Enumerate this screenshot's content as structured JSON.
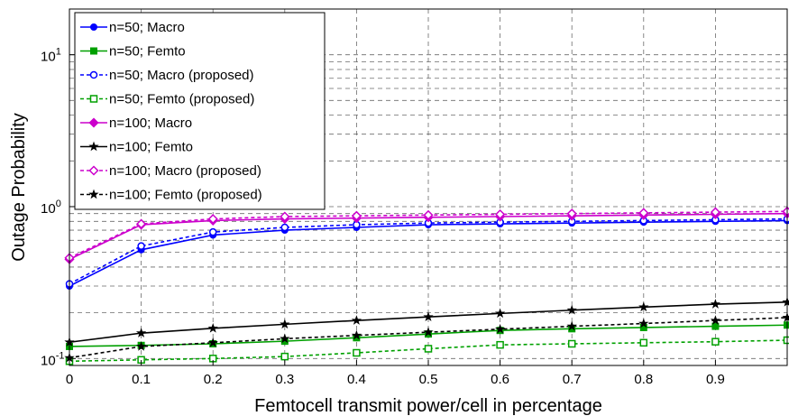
{
  "chart_data": {
    "type": "line",
    "title": "",
    "xlabel": "Femtocell transmit power/cell in percentage",
    "ylabel": "Outage Probability",
    "y_scale": "log",
    "xlim": [
      0,
      1
    ],
    "ylim": [
      0.09,
      20
    ],
    "grid": true,
    "legend_position": "top-left",
    "x_ticks": [
      {
        "value": 0,
        "label": "0"
      },
      {
        "value": 0.1,
        "label": "0.1"
      },
      {
        "value": 0.2,
        "label": "0.2"
      },
      {
        "value": 0.3,
        "label": "0.3"
      },
      {
        "value": 0.4,
        "label": "0.4"
      },
      {
        "value": 0.5,
        "label": "0.5"
      },
      {
        "value": 0.6,
        "label": "0.6"
      },
      {
        "value": 0.7,
        "label": "0.7"
      },
      {
        "value": 0.8,
        "label": "0.8"
      },
      {
        "value": 0.9,
        "label": "0.9"
      }
    ],
    "y_ticks": [
      {
        "value": 0.1,
        "base": "10",
        "exp": "-1"
      },
      {
        "value": 1,
        "base": "10",
        "exp": "0"
      },
      {
        "value": 10,
        "base": "10",
        "exp": "1"
      }
    ],
    "x": [
      0,
      0.1,
      0.2,
      0.3,
      0.4,
      0.5,
      0.6,
      0.7,
      0.8,
      0.9,
      1.0
    ],
    "series": [
      {
        "name": "n=50; Macro",
        "color": "#0000ff",
        "marker": "circle-filled",
        "dashed": false,
        "values": [
          0.3,
          0.52,
          0.65,
          0.7,
          0.73,
          0.76,
          0.77,
          0.78,
          0.79,
          0.8,
          0.81
        ]
      },
      {
        "name": "n=50; Femto",
        "color": "#00a000",
        "marker": "square-filled",
        "dashed": false,
        "values": [
          0.12,
          0.122,
          0.125,
          0.13,
          0.137,
          0.145,
          0.153,
          0.157,
          0.16,
          0.163,
          0.166
        ]
      },
      {
        "name": "n=50; Macro (proposed)",
        "color": "#0000ff",
        "marker": "circle-open",
        "dashed": true,
        "values": [
          0.31,
          0.55,
          0.68,
          0.73,
          0.76,
          0.78,
          0.79,
          0.8,
          0.81,
          0.82,
          0.83
        ]
      },
      {
        "name": "n=50; Femto (proposed)",
        "color": "#00a000",
        "marker": "square-open",
        "dashed": true,
        "values": [
          0.096,
          0.098,
          0.1,
          0.103,
          0.109,
          0.116,
          0.123,
          0.125,
          0.127,
          0.129,
          0.132
        ]
      },
      {
        "name": "n=100; Macro",
        "color": "#cc00cc",
        "marker": "diamond-filled",
        "dashed": false,
        "values": [
          0.45,
          0.76,
          0.81,
          0.83,
          0.84,
          0.85,
          0.86,
          0.87,
          0.88,
          0.89,
          0.9
        ]
      },
      {
        "name": "n=100; Femto",
        "color": "#000000",
        "marker": "star",
        "dashed": false,
        "values": [
          0.128,
          0.147,
          0.158,
          0.168,
          0.178,
          0.188,
          0.198,
          0.208,
          0.218,
          0.228,
          0.235
        ]
      },
      {
        "name": "n=100; Macro (proposed)",
        "color": "#cc00cc",
        "marker": "diamond-open",
        "dashed": true,
        "values": [
          0.46,
          0.77,
          0.83,
          0.86,
          0.87,
          0.88,
          0.89,
          0.9,
          0.91,
          0.92,
          0.93
        ]
      },
      {
        "name": "n=100; Femto (proposed)",
        "color": "#000000",
        "marker": "star",
        "dashed": true,
        "values": [
          0.101,
          0.12,
          0.127,
          0.135,
          0.142,
          0.149,
          0.156,
          0.163,
          0.17,
          0.178,
          0.186
        ]
      }
    ]
  }
}
